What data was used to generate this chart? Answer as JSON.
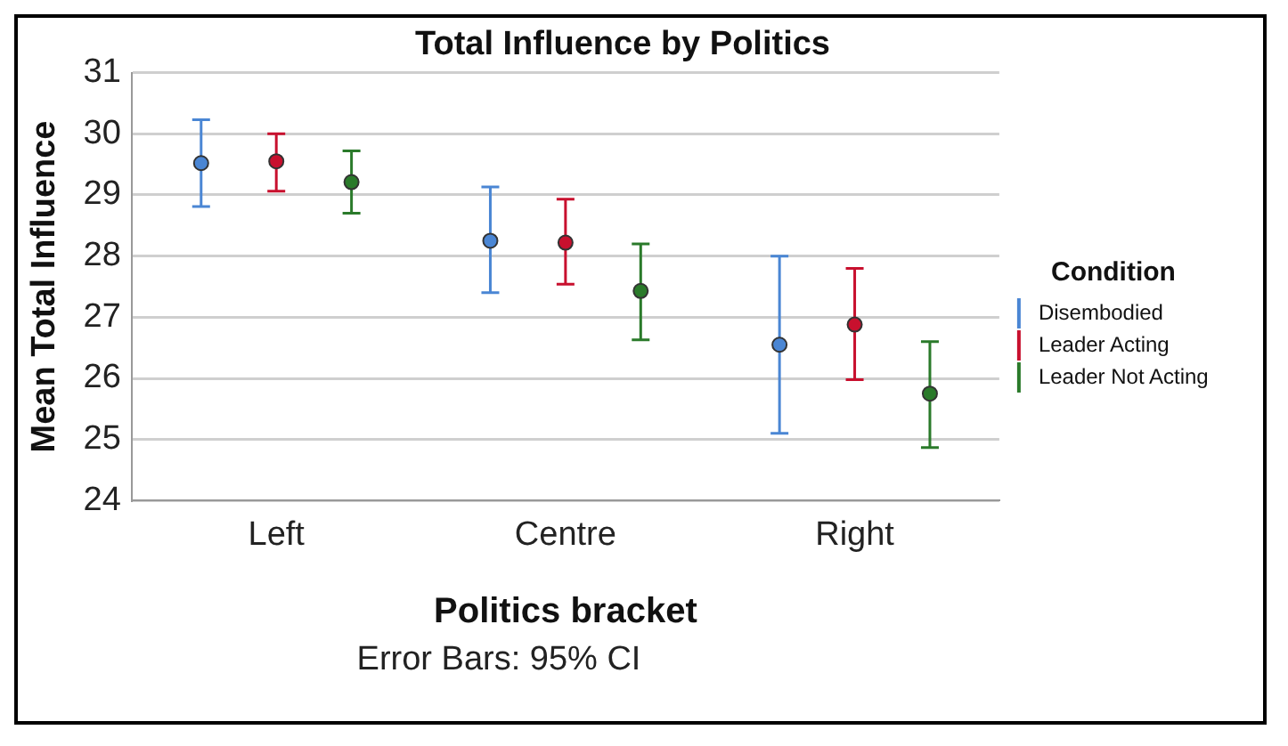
{
  "chart_data": {
    "type": "scatter",
    "title": "Total Influence by Politics",
    "xlabel": "Politics bracket",
    "ylabel": "Mean Total Influence",
    "legend_title": "Condition",
    "categories": [
      "Left",
      "Centre",
      "Right"
    ],
    "series": [
      {
        "name": "Disembodied",
        "color": "#4a86d4",
        "values": [
          29.52,
          28.25,
          26.55
        ],
        "errors": [
          [
            28.81,
            30.23
          ],
          [
            27.4,
            29.13
          ],
          [
            25.1,
            28.0
          ]
        ]
      },
      {
        "name": "Leader Acting",
        "color": "#c8102e",
        "values": [
          29.55,
          28.22,
          26.88
        ],
        "errors": [
          [
            29.06,
            30.0
          ],
          [
            27.54,
            28.93
          ],
          [
            25.98,
            27.8
          ]
        ]
      },
      {
        "name": "Leader Not Acting",
        "color": "#2a7a2a",
        "values": [
          29.21,
          27.43,
          25.75
        ],
        "errors": [
          [
            28.7,
            29.72
          ],
          [
            26.63,
            28.2
          ],
          [
            24.87,
            26.6
          ]
        ]
      }
    ],
    "ylim": [
      24,
      31
    ],
    "yticks": [
      24,
      25,
      26,
      27,
      28,
      29,
      30,
      31
    ],
    "grid": "y",
    "legend": "right",
    "marker": "circle",
    "annotations": [
      "Error Bars: 95% CI"
    ]
  }
}
